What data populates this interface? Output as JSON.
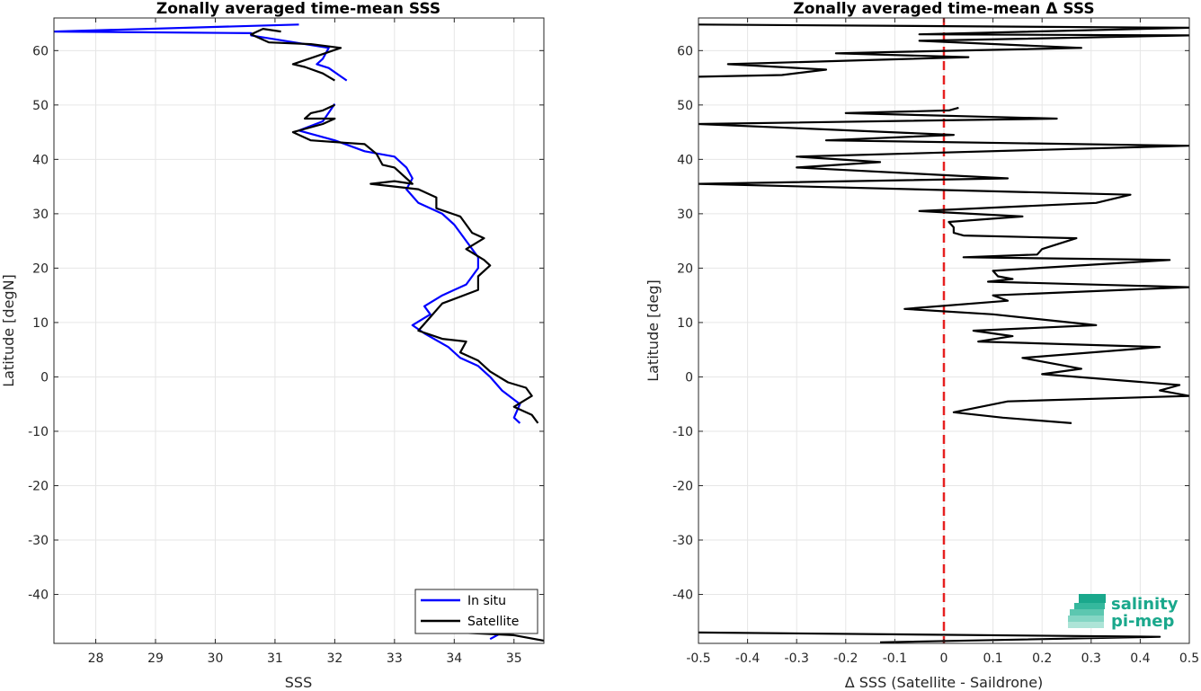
{
  "chart_data": [
    {
      "type": "line",
      "title": "Zonally averaged time-mean SSS",
      "xlabel": "SSS",
      "ylabel": "Latitude [degN]",
      "xlim": [
        27.3,
        35.5
      ],
      "ylim": [
        -49,
        66
      ],
      "xticks": [
        28,
        29,
        30,
        31,
        32,
        33,
        34,
        35
      ],
      "yticks": [
        -40,
        -30,
        -20,
        -10,
        0,
        10,
        20,
        30,
        40,
        50,
        60
      ],
      "grid": true,
      "legend": "bottom-right",
      "series": [
        {
          "name": "In situ",
          "color": "#0000ff",
          "points": [
            [
              31.4,
              64.8
            ],
            [
              27.3,
              63.5
            ],
            [
              30.6,
              63.2
            ],
            [
              30.6,
              62.8
            ],
            [
              31.9,
              60.5
            ],
            [
              31.8,
              58.5
            ],
            [
              31.7,
              57.5
            ],
            [
              31.9,
              56.8
            ],
            [
              32.2,
              54.5
            ],
            null,
            [
              32.0,
              50.2
            ],
            [
              31.8,
              47.0
            ],
            [
              31.4,
              45.3
            ],
            [
              32.0,
              43.5
            ],
            [
              32.5,
              41.5
            ],
            [
              33.0,
              40.5
            ],
            [
              33.2,
              38.5
            ],
            [
              33.3,
              36.5
            ],
            [
              33.2,
              34.5
            ],
            [
              33.4,
              32.0
            ],
            [
              33.8,
              30.0
            ],
            [
              34.0,
              28.0
            ],
            [
              34.2,
              25.0
            ],
            [
              34.4,
              22.0
            ],
            [
              34.4,
              20.0
            ],
            [
              34.2,
              17.0
            ],
            [
              33.8,
              15.0
            ],
            [
              33.5,
              13.0
            ],
            [
              33.6,
              11.5
            ],
            [
              33.3,
              9.5
            ],
            [
              33.5,
              8.0
            ],
            [
              33.9,
              5.5
            ],
            [
              34.1,
              3.5
            ],
            [
              34.4,
              2.0
            ],
            [
              34.6,
              0.0
            ],
            [
              34.8,
              -2.5
            ],
            [
              35.1,
              -5.0
            ],
            [
              35.0,
              -7.5
            ],
            [
              35.1,
              -8.5
            ],
            null,
            [
              34.6,
              -48.2
            ],
            [
              34.8,
              -47.0
            ]
          ]
        },
        {
          "name": "Satellite",
          "color": "#000000",
          "points": [
            [
              31.1,
              63.5
            ],
            [
              30.8,
              64.0
            ],
            [
              30.6,
              63.0
            ],
            [
              30.9,
              61.5
            ],
            [
              31.6,
              61.2
            ],
            [
              32.1,
              60.5
            ],
            [
              31.7,
              59.0
            ],
            [
              31.3,
              57.5
            ],
            [
              31.5,
              57.0
            ],
            [
              31.8,
              55.8
            ],
            [
              32.0,
              54.5
            ],
            null,
            [
              32.0,
              50.0
            ],
            [
              31.8,
              49.0
            ],
            [
              31.6,
              48.5
            ],
            [
              31.5,
              47.5
            ],
            [
              32.0,
              47.5
            ],
            [
              31.8,
              46.5
            ],
            [
              31.3,
              45.0
            ],
            [
              31.6,
              43.5
            ],
            [
              32.5,
              42.8
            ],
            [
              32.7,
              41.0
            ],
            [
              32.8,
              39.0
            ],
            [
              33.0,
              38.5
            ],
            [
              33.2,
              36.5
            ],
            [
              33.3,
              35.5
            ],
            [
              33.0,
              36.0
            ],
            [
              32.6,
              35.5
            ],
            [
              33.4,
              34.5
            ],
            [
              33.7,
              33.0
            ],
            [
              33.7,
              31.0
            ],
            [
              34.1,
              29.5
            ],
            [
              34.3,
              26.5
            ],
            [
              34.5,
              25.5
            ],
            [
              34.2,
              23.5
            ],
            [
              34.5,
              21.5
            ],
            [
              34.6,
              20.5
            ],
            [
              34.4,
              18.5
            ],
            [
              34.4,
              16.0
            ],
            [
              33.8,
              13.5
            ],
            [
              33.6,
              11.0
            ],
            [
              33.4,
              8.5
            ],
            [
              33.8,
              7.0
            ],
            [
              34.2,
              6.5
            ],
            [
              34.1,
              4.5
            ],
            [
              34.4,
              3.0
            ],
            [
              34.6,
              1.0
            ],
            [
              34.9,
              -1.0
            ],
            [
              35.2,
              -2.0
            ],
            [
              35.3,
              -3.5
            ],
            [
              35.0,
              -5.5
            ],
            [
              35.3,
              -7.0
            ],
            [
              35.4,
              -8.5
            ],
            null,
            [
              33.7,
              -46.8
            ],
            [
              35.0,
              -47.5
            ],
            [
              35.5,
              -48.5
            ]
          ]
        }
      ]
    },
    {
      "type": "line",
      "title": "Zonally averaged time-mean Δ SSS",
      "xlabel": "Δ SSS (Satellite - Saildrone)",
      "ylabel": "Latitude [deg]",
      "xlim": [
        -0.5,
        0.5
      ],
      "ylim": [
        -49,
        66
      ],
      "xticks": [
        -0.5,
        -0.4,
        -0.3,
        -0.2,
        -0.1,
        0,
        0.1,
        0.2,
        0.3,
        0.4,
        0.5
      ],
      "xtick_labels": [
        "-0.5",
        "-0.4",
        "-0.3",
        "-0.2",
        "-0.1",
        "0",
        "0.1",
        "0.2",
        "0.3",
        "0.4",
        "0.5"
      ],
      "yticks": [
        -40,
        -30,
        -20,
        -10,
        0,
        10,
        20,
        30,
        40,
        50,
        60
      ],
      "grid": true,
      "reference_line": {
        "x": 0,
        "color": "#e62020",
        "style": "dashed"
      },
      "series": [
        {
          "color": "#000000",
          "points": [
            [
              -0.5,
              64.8
            ],
            [
              0.5,
              64.2
            ],
            [
              -0.05,
              63.0
            ],
            [
              0.5,
              62.8
            ],
            [
              -0.05,
              61.8
            ],
            [
              0.28,
              60.5
            ],
            [
              -0.22,
              59.5
            ],
            [
              0.05,
              58.8
            ],
            [
              -0.44,
              57.5
            ],
            [
              -0.24,
              56.5
            ],
            [
              -0.33,
              55.5
            ],
            [
              -0.5,
              55.2
            ],
            null,
            [
              0.03,
              49.5
            ],
            [
              0.01,
              49.0
            ],
            [
              -0.2,
              48.5
            ],
            [
              0.23,
              47.5
            ],
            [
              -0.5,
              46.5
            ],
            [
              0.02,
              44.5
            ],
            [
              -0.24,
              43.5
            ],
            [
              0.5,
              42.5
            ],
            [
              -0.3,
              40.5
            ],
            [
              -0.13,
              39.5
            ],
            [
              -0.3,
              38.5
            ],
            [
              0.13,
              36.5
            ],
            [
              -0.5,
              35.5
            ],
            [
              0.38,
              33.5
            ],
            [
              0.31,
              32.0
            ],
            [
              -0.05,
              30.5
            ],
            [
              0.16,
              29.5
            ],
            [
              0.01,
              28.5
            ],
            [
              0.02,
              27.5
            ],
            [
              0.02,
              26.5
            ],
            [
              0.04,
              26.0
            ],
            [
              0.27,
              25.5
            ],
            [
              0.2,
              23.5
            ],
            [
              0.19,
              22.5
            ],
            [
              0.04,
              22.0
            ],
            [
              0.46,
              21.5
            ],
            [
              0.1,
              19.5
            ],
            [
              0.11,
              18.5
            ],
            [
              0.14,
              18.0
            ],
            [
              0.09,
              17.5
            ],
            [
              0.5,
              16.5
            ],
            [
              0.1,
              15.0
            ],
            [
              0.13,
              14.0
            ],
            [
              -0.08,
              12.5
            ],
            [
              0.1,
              11.5
            ],
            [
              0.31,
              9.5
            ],
            [
              0.06,
              8.5
            ],
            [
              0.14,
              7.5
            ],
            [
              0.07,
              6.5
            ],
            [
              0.44,
              5.5
            ],
            [
              0.16,
              3.5
            ],
            [
              0.28,
              1.5
            ],
            [
              0.2,
              0.5
            ],
            [
              0.48,
              -1.5
            ],
            [
              0.44,
              -2.5
            ],
            [
              0.5,
              -3.5
            ],
            [
              0.13,
              -4.5
            ],
            [
              0.02,
              -6.5
            ],
            [
              0.12,
              -7.5
            ],
            [
              0.26,
              -8.5
            ],
            null,
            [
              -0.5,
              -47.0
            ],
            [
              0.44,
              -47.8
            ],
            [
              -0.13,
              -48.8
            ]
          ]
        }
      ]
    }
  ],
  "legend_labels": {
    "in_situ": "In situ",
    "satellite": "Satellite"
  },
  "logo": {
    "line1": "salinity",
    "line2": "pi-mep",
    "color": "#1aa88c"
  }
}
